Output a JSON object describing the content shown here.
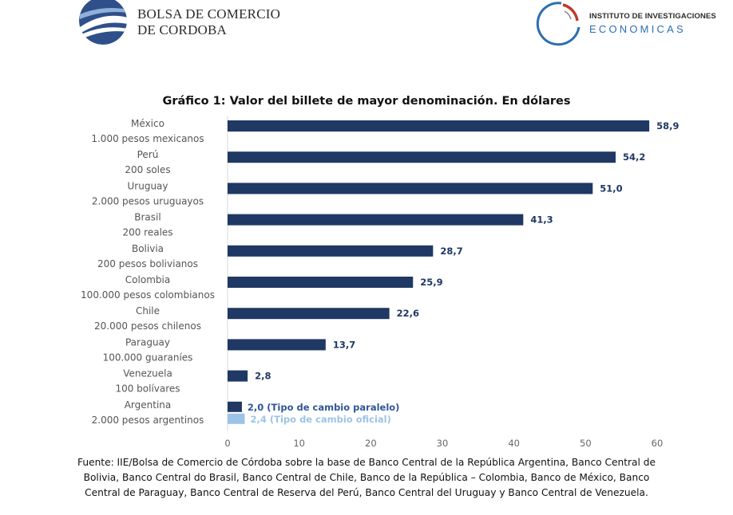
{
  "header": {
    "left_logo_icon": "bolsa-globe-icon",
    "left_logo_lines": [
      "BOLSA DE COMERCIO",
      "DE CORDOBA"
    ],
    "right_logo_icon": "iie-ring-icon",
    "right_logo_line1": "INSTITUTO DE INVESTIGACIONES",
    "right_logo_line2": "ECONOMICAS"
  },
  "colors": {
    "bar_primary": "#1f3864",
    "bar_secondary": "#9dc3e6",
    "label_paralelo": "#2f5597",
    "label_oficial": "#9dc3e6"
  },
  "chart_data": {
    "type": "bar",
    "orientation": "horizontal",
    "title": "Gráfico 1: Valor del billete de mayor denominación. En dólares",
    "xlim": [
      0,
      60
    ],
    "xticks": [
      "0",
      "10",
      "20",
      "30",
      "40",
      "50",
      "60"
    ],
    "grid": false,
    "categories": [
      {
        "country": "México",
        "note": "1.000 pesos mexicanos",
        "bars": [
          {
            "value": 58.9,
            "label": "58,9"
          }
        ]
      },
      {
        "country": "Perú",
        "note": "200 soles",
        "bars": [
          {
            "value": 54.2,
            "label": "54,2"
          }
        ]
      },
      {
        "country": "Uruguay",
        "note": "2.000 pesos uruguayos",
        "bars": [
          {
            "value": 51.0,
            "label": "51,0"
          }
        ]
      },
      {
        "country": "Brasil",
        "note": "200 reales",
        "bars": [
          {
            "value": 41.3,
            "label": "41,3"
          }
        ]
      },
      {
        "country": "Bolivia",
        "note": "200 pesos bolivianos",
        "bars": [
          {
            "value": 28.7,
            "label": "28,7"
          }
        ]
      },
      {
        "country": "Colombia",
        "note": "100.000 pesos colombianos",
        "bars": [
          {
            "value": 25.9,
            "label": "25,9"
          }
        ]
      },
      {
        "country": "Chile",
        "note": "20.000 pesos chilenos",
        "bars": [
          {
            "value": 22.6,
            "label": "22,6"
          }
        ]
      },
      {
        "country": "Paraguay",
        "note": "100.000 guaraníes",
        "bars": [
          {
            "value": 13.7,
            "label": "13,7"
          }
        ]
      },
      {
        "country": "Venezuela",
        "note": "100 bolívares",
        "bars": [
          {
            "value": 2.8,
            "label": "2,8"
          }
        ]
      },
      {
        "country": "Argentina",
        "note": "2.000 pesos argentinos",
        "bars": [
          {
            "value": 2.0,
            "label": "2,0 (Tipo de cambio paralelo)",
            "tone": "paralelo"
          },
          {
            "value": 2.4,
            "label": "2,4 (Tipo de cambio oficial)",
            "tone": "oficial"
          }
        ]
      }
    ]
  },
  "source_lines": [
    "Fuente: IIE/Bolsa de Comercio de Córdoba sobre la base de Banco Central de la República Argentina, Banco Central de",
    "Bolivia, Banco Central do Brasil, Banco Central de Chile, Banco de la República – Colombia, Banco de México, Banco",
    "Central de Paraguay, Banco Central de Reserva del Perú, Banco Central del Uruguay y Banco Central de Venezuela."
  ]
}
